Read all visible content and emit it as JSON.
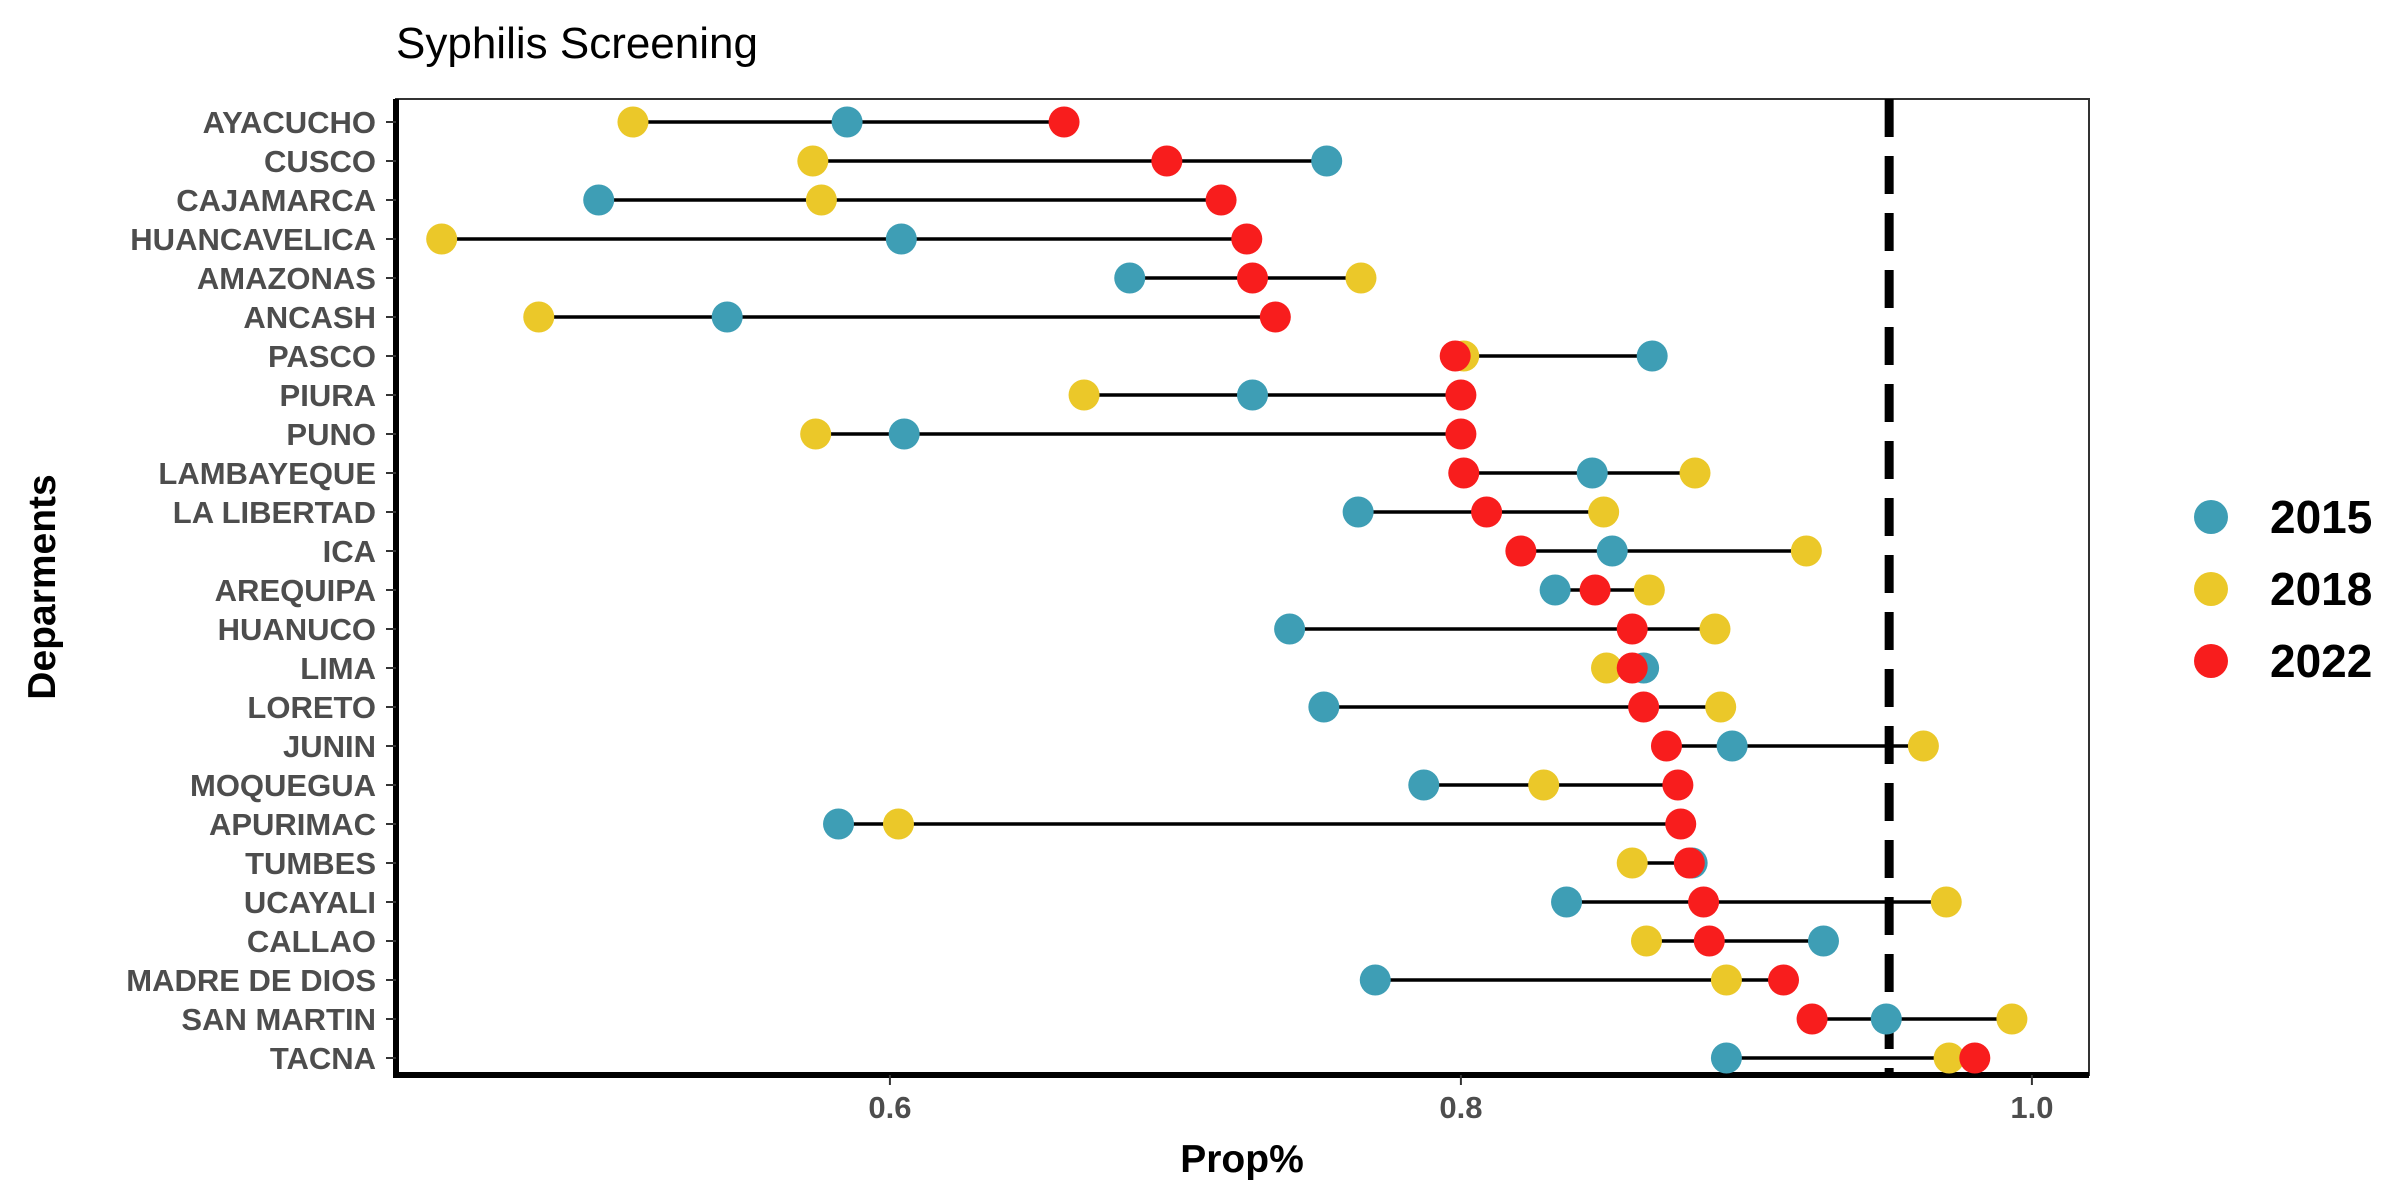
{
  "chart_data": {
    "type": "dumbbell",
    "title": "Syphilis Screening",
    "xlabel": "Prop%",
    "ylabel": "Deparments",
    "xlim": [
      0.427,
      1.02
    ],
    "xticks": [
      0.6,
      0.8,
      1.0
    ],
    "xtick_labels": [
      "0.6",
      "0.8",
      "1.0"
    ],
    "reference_line": {
      "x": 0.95,
      "style": "dashed"
    },
    "legend_position": "right",
    "grid": false,
    "categories": [
      "AYACUCHO",
      "CUSCO",
      "CAJAMARCA",
      "HUANCAVELICA",
      "AMAZONAS",
      "ANCASH",
      "PASCO",
      "PIURA",
      "PUNO",
      "LAMBAYEQUE",
      "LA LIBERTAD",
      "ICA",
      "AREQUIPA",
      "HUANUCO",
      "LIMA",
      "LORETO",
      "JUNIN",
      "MOQUEGUA",
      "APURIMAC",
      "TUMBES",
      "UCAYALI",
      "CALLAO",
      "MADRE DE DIOS",
      "SAN MARTIN",
      "TACNA"
    ],
    "series": [
      {
        "name": "2015",
        "color": "#3e9eb5",
        "values": [
          0.585,
          0.753,
          0.498,
          0.604,
          0.684,
          0.543,
          0.867,
          0.727,
          0.605,
          0.846,
          0.764,
          0.853,
          0.833,
          0.74,
          0.864,
          0.752,
          0.895,
          0.787,
          0.582,
          0.881,
          0.837,
          0.927,
          0.77,
          0.949,
          0.893
        ]
      },
      {
        "name": "2018",
        "color": "#ebc829",
        "values": [
          0.51,
          0.573,
          0.576,
          0.443,
          0.765,
          0.477,
          0.801,
          0.668,
          0.574,
          0.882,
          0.85,
          0.921,
          0.866,
          0.889,
          0.851,
          0.891,
          0.962,
          0.829,
          0.603,
          0.86,
          0.97,
          0.865,
          0.893,
          0.993,
          0.971
        ]
      },
      {
        "name": "2022",
        "color": "#f81d1d",
        "values": [
          0.661,
          0.697,
          0.716,
          0.725,
          0.727,
          0.735,
          0.798,
          0.8,
          0.8,
          0.801,
          0.809,
          0.821,
          0.847,
          0.86,
          0.86,
          0.864,
          0.872,
          0.876,
          0.877,
          0.88,
          0.885,
          0.887,
          0.913,
          0.923,
          0.98
        ]
      }
    ]
  }
}
